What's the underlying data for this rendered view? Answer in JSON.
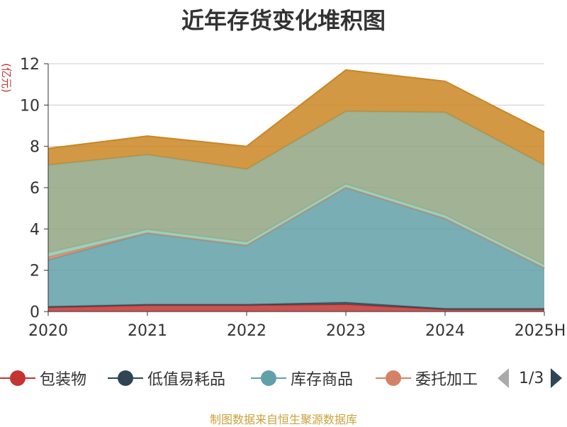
{
  "title": "近年存货变化堆积图",
  "unit_label": "(亿元)",
  "source_note": "制图数据来自恒生聚源数据库",
  "legend": {
    "items": [
      {
        "label": "包装物",
        "color": "#c23531"
      },
      {
        "label": "低值易耗品",
        "color": "#2f4554"
      },
      {
        "label": "库存商品",
        "color": "#61a0a8"
      },
      {
        "label": "委托加工",
        "color": "#d48265"
      }
    ],
    "page": "1/3"
  },
  "chart_data": {
    "type": "area",
    "stacked": true,
    "x": [
      "2020",
      "2021",
      "2022",
      "2023",
      "2024",
      "2025H"
    ],
    "ylim": [
      0,
      12
    ],
    "yticks": [
      0,
      2,
      4,
      6,
      8,
      10,
      12
    ],
    "grid": true,
    "legend_position": "bottom",
    "series": [
      {
        "name": "包装物",
        "color": "#c23531",
        "values": [
          0.2,
          0.3,
          0.3,
          0.35,
          0.1,
          0.1
        ]
      },
      {
        "name": "低值易耗品",
        "color": "#2f4554",
        "values": [
          0.05,
          0.05,
          0.05,
          0.1,
          0.05,
          0.05
        ]
      },
      {
        "name": "库存商品",
        "color": "#61a0a8",
        "values": [
          2.25,
          3.45,
          2.85,
          5.55,
          4.35,
          1.95
        ]
      },
      {
        "name": "委托加工",
        "color": "#d48265",
        "values": [
          0.15,
          0.02,
          0.02,
          0.02,
          0.02,
          0.02
        ]
      },
      {
        "color": "#91c7ae",
        "values": [
          0.2,
          0.15,
          0.15,
          0.15,
          0.15,
          0.15
        ]
      },
      {
        "color": "#91a583",
        "values": [
          4.25,
          3.63,
          3.53,
          3.53,
          4.98,
          4.83
        ]
      },
      {
        "color": "#ca8622",
        "values": [
          0.8,
          0.9,
          1.1,
          2.0,
          1.5,
          1.6
        ]
      }
    ]
  }
}
